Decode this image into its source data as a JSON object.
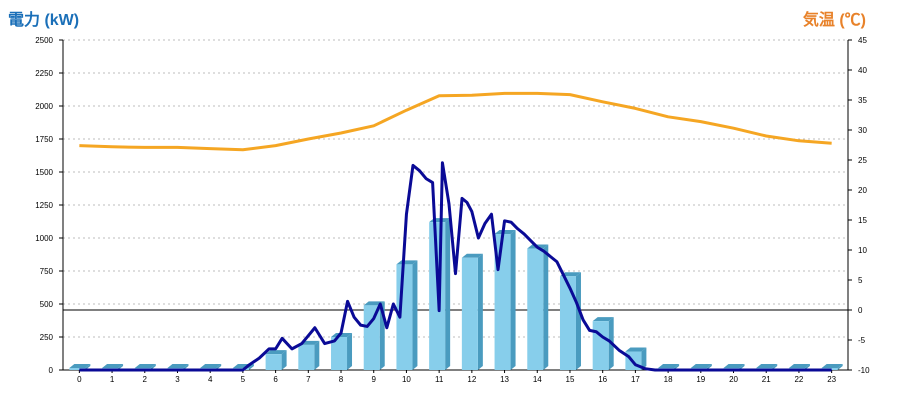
{
  "chart_data": {
    "type": "bar",
    "y_left_label": "電力 (kW)",
    "y_right_label": "気温 (℃)",
    "left_color": "#1a6fb8",
    "right_color": "#e8822a",
    "bar_color": "#87ceeb",
    "bar_dark_color": "#4a9bbf",
    "line_power_color": "#0a0a96",
    "line_temp_color": "#f5a623",
    "grid": true,
    "x_ticks": [
      "0",
      "1",
      "2",
      "3",
      "4",
      "5",
      "6",
      "7",
      "8",
      "9",
      "10",
      "11",
      "12",
      "13",
      "14",
      "15",
      "16",
      "17",
      "18",
      "19",
      "20",
      "21",
      "22",
      "23"
    ],
    "y_left": {
      "min": 0,
      "max": 2500,
      "ticks": [
        "0",
        "250",
        "500",
        "750",
        "1000",
        "1250",
        "1500",
        "1750",
        "2000",
        "2250",
        "2500"
      ]
    },
    "y_right": {
      "min": -10,
      "max": 45,
      "ticks": [
        "-10",
        "-5",
        "0",
        "5",
        "10",
        "15",
        "20",
        "25",
        "30",
        "35",
        "40",
        "45"
      ]
    },
    "bars": {
      "name": "hourly power (kW)",
      "values": [
        15,
        15,
        15,
        15,
        15,
        15,
        120,
        190,
        250,
        490,
        800,
        1120,
        850,
        1030,
        920,
        710,
        370,
        140,
        15,
        15,
        15,
        15,
        15,
        15
      ]
    },
    "power_line": {
      "name": "power (kW)",
      "x": [
        0,
        1,
        2,
        3,
        4,
        5,
        5.2,
        5.5,
        5.8,
        6.0,
        6.2,
        6.5,
        6.8,
        7.0,
        7.2,
        7.5,
        7.8,
        8.0,
        8.2,
        8.4,
        8.6,
        8.8,
        9.0,
        9.2,
        9.4,
        9.6,
        9.8,
        10.0,
        10.2,
        10.4,
        10.6,
        10.8,
        11.0,
        11.1,
        11.3,
        11.5,
        11.7,
        11.85,
        12.0,
        12.2,
        12.4,
        12.6,
        12.8,
        13.0,
        13.2,
        13.4,
        13.6,
        13.8,
        14.0,
        14.2,
        14.4,
        14.6,
        14.8,
        15.0,
        15.2,
        15.4,
        15.6,
        15.8,
        16.0,
        16.2,
        16.5,
        16.8,
        17.0,
        17.3,
        17.6,
        18.0,
        18.5,
        19,
        20,
        21,
        22,
        23
      ],
      "y": [
        0,
        0,
        0,
        0,
        0,
        0,
        40,
        90,
        160,
        160,
        240,
        160,
        200,
        260,
        320,
        200,
        220,
        280,
        520,
        400,
        340,
        330,
        390,
        500,
        320,
        500,
        400,
        1180,
        1550,
        1510,
        1450,
        1420,
        450,
        1570,
        1260,
        730,
        1300,
        1270,
        1200,
        1000,
        1110,
        1180,
        760,
        1130,
        1120,
        1070,
        1030,
        980,
        930,
        900,
        860,
        820,
        720,
        620,
        510,
        380,
        300,
        290,
        250,
        220,
        150,
        100,
        40,
        10,
        0,
        0,
        0,
        0,
        0,
        0,
        0,
        0
      ]
    },
    "temperature_line": {
      "name": "temperature (℃)",
      "x": [
        0,
        1,
        2,
        3,
        4,
        5,
        6,
        7,
        8,
        9,
        10,
        11,
        12,
        13,
        14,
        15,
        16,
        17,
        18,
        19,
        20,
        21,
        22,
        23
      ],
      "y": [
        27.4,
        27.2,
        27.1,
        27.1,
        26.9,
        26.7,
        27.4,
        28.5,
        29.5,
        30.7,
        33.3,
        35.7,
        35.8,
        36.1,
        36.1,
        35.9,
        34.7,
        33.6,
        32.2,
        31.4,
        30.3,
        29.0,
        28.2,
        27.8
      ]
    }
  }
}
